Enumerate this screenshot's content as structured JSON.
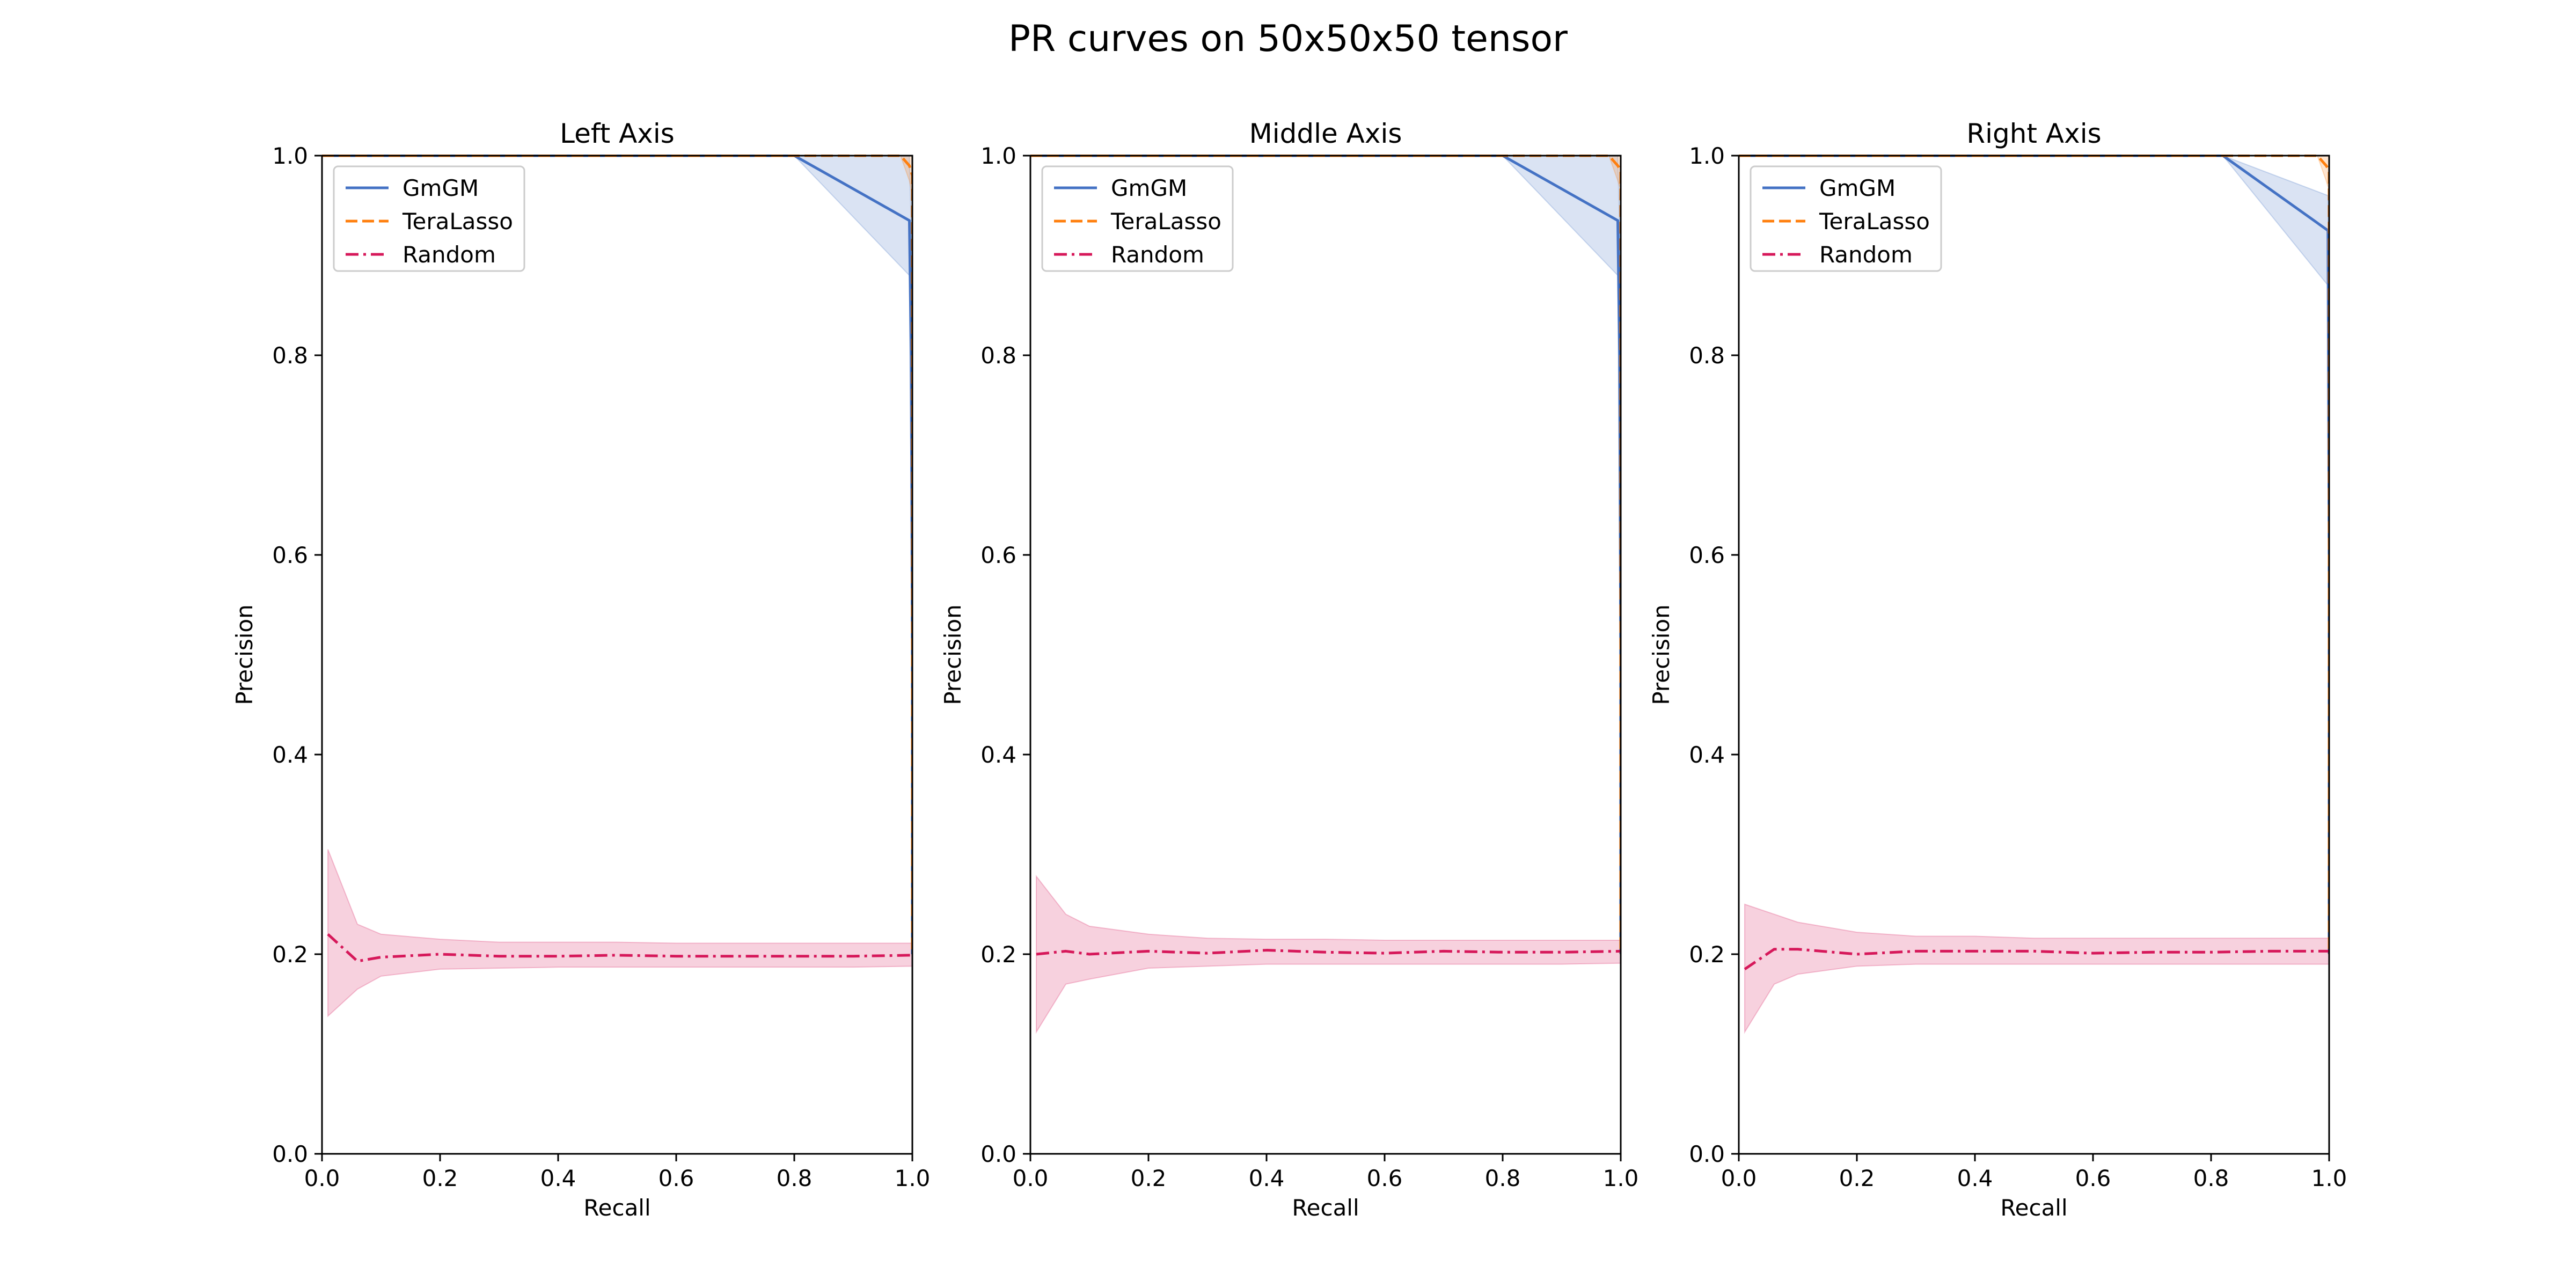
{
  "chart_data": {
    "title": "PR curves on 50x50x50 tensor",
    "type": "line",
    "grid": false,
    "legend_position": "upper-left",
    "colors": {
      "GmGM": "#4472c4",
      "TeraLasso": "#ff7f0e",
      "Random": "#d6185a"
    },
    "panels": [
      {
        "title": "Left Axis",
        "xlabel": "Recall",
        "ylabel": "Precision",
        "xlim": [
          0,
          1
        ],
        "ylim": [
          0,
          1
        ],
        "xticks": [
          "0.0",
          "0.2",
          "0.4",
          "0.6",
          "0.8",
          "1.0"
        ],
        "yticks": [
          "0.0",
          "0.2",
          "0.4",
          "0.6",
          "0.8",
          "1.0"
        ],
        "series": [
          {
            "name": "GmGM",
            "style": "solid",
            "x": [
              0.0,
              0.8,
              0.995,
              0.998,
              1.0,
              1.0
            ],
            "y": [
              1.0,
              1.0,
              0.935,
              0.8,
              0.5,
              0.2
            ],
            "band_upper": [
              1.0,
              1.0,
              1.0,
              0.93,
              0.6,
              0.22
            ],
            "band_lower": [
              1.0,
              1.0,
              0.88,
              0.65,
              0.4,
              0.19
            ]
          },
          {
            "name": "TeraLasso",
            "style": "dashed",
            "x": [
              0.0,
              0.98,
              0.995,
              1.0,
              1.0
            ],
            "y": [
              1.0,
              1.0,
              0.99,
              0.98,
              0.2
            ],
            "band_upper": [
              1.0,
              1.0,
              1.0,
              1.0,
              0.22
            ],
            "band_lower": [
              1.0,
              1.0,
              0.975,
              0.96,
              0.19
            ]
          },
          {
            "name": "Random",
            "style": "dashdot",
            "x": [
              0.01,
              0.06,
              0.1,
              0.2,
              0.3,
              0.4,
              0.5,
              0.6,
              0.7,
              0.8,
              0.9,
              1.0
            ],
            "y": [
              0.22,
              0.193,
              0.197,
              0.2,
              0.198,
              0.198,
              0.199,
              0.198,
              0.198,
              0.198,
              0.198,
              0.199
            ],
            "band_upper": [
              0.305,
              0.23,
              0.22,
              0.215,
              0.212,
              0.212,
              0.212,
              0.211,
              0.211,
              0.211,
              0.211,
              0.211
            ],
            "band_lower": [
              0.138,
              0.165,
              0.178,
              0.185,
              0.186,
              0.187,
              0.187,
              0.187,
              0.187,
              0.187,
              0.187,
              0.188
            ]
          }
        ]
      },
      {
        "title": "Middle Axis",
        "xlabel": "Recall",
        "ylabel": "Precision",
        "xlim": [
          0,
          1
        ],
        "ylim": [
          0,
          1
        ],
        "xticks": [
          "0.0",
          "0.2",
          "0.4",
          "0.6",
          "0.8",
          "1.0"
        ],
        "yticks": [
          "0.0",
          "0.2",
          "0.4",
          "0.6",
          "0.8",
          "1.0"
        ],
        "series": [
          {
            "name": "GmGM",
            "style": "solid",
            "x": [
              0.0,
              0.8,
              0.995,
              0.998,
              1.0,
              1.0
            ],
            "y": [
              1.0,
              1.0,
              0.935,
              0.8,
              0.5,
              0.2
            ],
            "band_upper": [
              1.0,
              1.0,
              1.0,
              0.93,
              0.6,
              0.22
            ],
            "band_lower": [
              1.0,
              1.0,
              0.88,
              0.65,
              0.4,
              0.19
            ]
          },
          {
            "name": "TeraLasso",
            "style": "dashed",
            "x": [
              0.0,
              0.98,
              0.995,
              1.0,
              1.0
            ],
            "y": [
              1.0,
              1.0,
              0.99,
              0.985,
              0.2
            ],
            "band_upper": [
              1.0,
              1.0,
              1.0,
              1.0,
              0.22
            ],
            "band_lower": [
              1.0,
              1.0,
              0.975,
              0.965,
              0.19
            ]
          },
          {
            "name": "Random",
            "style": "dashdot",
            "x": [
              0.01,
              0.06,
              0.1,
              0.2,
              0.3,
              0.4,
              0.5,
              0.6,
              0.7,
              0.8,
              0.9,
              1.0
            ],
            "y": [
              0.2,
              0.203,
              0.2,
              0.203,
              0.201,
              0.204,
              0.202,
              0.201,
              0.203,
              0.202,
              0.202,
              0.203
            ],
            "band_upper": [
              0.278,
              0.24,
              0.228,
              0.22,
              0.216,
              0.215,
              0.215,
              0.214,
              0.214,
              0.214,
              0.214,
              0.214
            ],
            "band_lower": [
              0.122,
              0.17,
              0.175,
              0.186,
              0.188,
              0.19,
              0.19,
              0.19,
              0.19,
              0.19,
              0.19,
              0.191
            ]
          }
        ]
      },
      {
        "title": "Right Axis",
        "xlabel": "Recall",
        "ylabel": "Precision",
        "xlim": [
          0,
          1
        ],
        "ylim": [
          0,
          1
        ],
        "xticks": [
          "0.0",
          "0.2",
          "0.4",
          "0.6",
          "0.8",
          "1.0"
        ],
        "yticks": [
          "0.0",
          "0.2",
          "0.4",
          "0.6",
          "0.8",
          "1.0"
        ],
        "series": [
          {
            "name": "GmGM",
            "style": "solid",
            "x": [
              0.0,
              0.82,
              0.998,
              1.0,
              1.0
            ],
            "y": [
              1.0,
              1.0,
              0.925,
              0.6,
              0.2
            ],
            "band_upper": [
              1.0,
              1.0,
              0.96,
              0.7,
              0.22
            ],
            "band_lower": [
              1.0,
              1.0,
              0.87,
              0.5,
              0.19
            ]
          },
          {
            "name": "TeraLasso",
            "style": "dashed",
            "x": [
              0.0,
              0.98,
              0.995,
              1.0,
              1.0
            ],
            "y": [
              1.0,
              1.0,
              0.99,
              0.985,
              0.2
            ],
            "band_upper": [
              1.0,
              1.0,
              1.0,
              1.0,
              0.22
            ],
            "band_lower": [
              1.0,
              1.0,
              0.975,
              0.965,
              0.19
            ]
          },
          {
            "name": "Random",
            "style": "dashdot",
            "x": [
              0.01,
              0.06,
              0.1,
              0.2,
              0.3,
              0.4,
              0.5,
              0.6,
              0.7,
              0.8,
              0.9,
              1.0
            ],
            "y": [
              0.185,
              0.205,
              0.205,
              0.2,
              0.203,
              0.203,
              0.203,
              0.201,
              0.202,
              0.202,
              0.203,
              0.203
            ],
            "band_upper": [
              0.25,
              0.24,
              0.232,
              0.222,
              0.218,
              0.218,
              0.216,
              0.216,
              0.216,
              0.216,
              0.216,
              0.216
            ],
            "band_lower": [
              0.122,
              0.17,
              0.18,
              0.188,
              0.19,
              0.19,
              0.19,
              0.19,
              0.19,
              0.19,
              0.19,
              0.19
            ]
          }
        ]
      }
    ]
  }
}
